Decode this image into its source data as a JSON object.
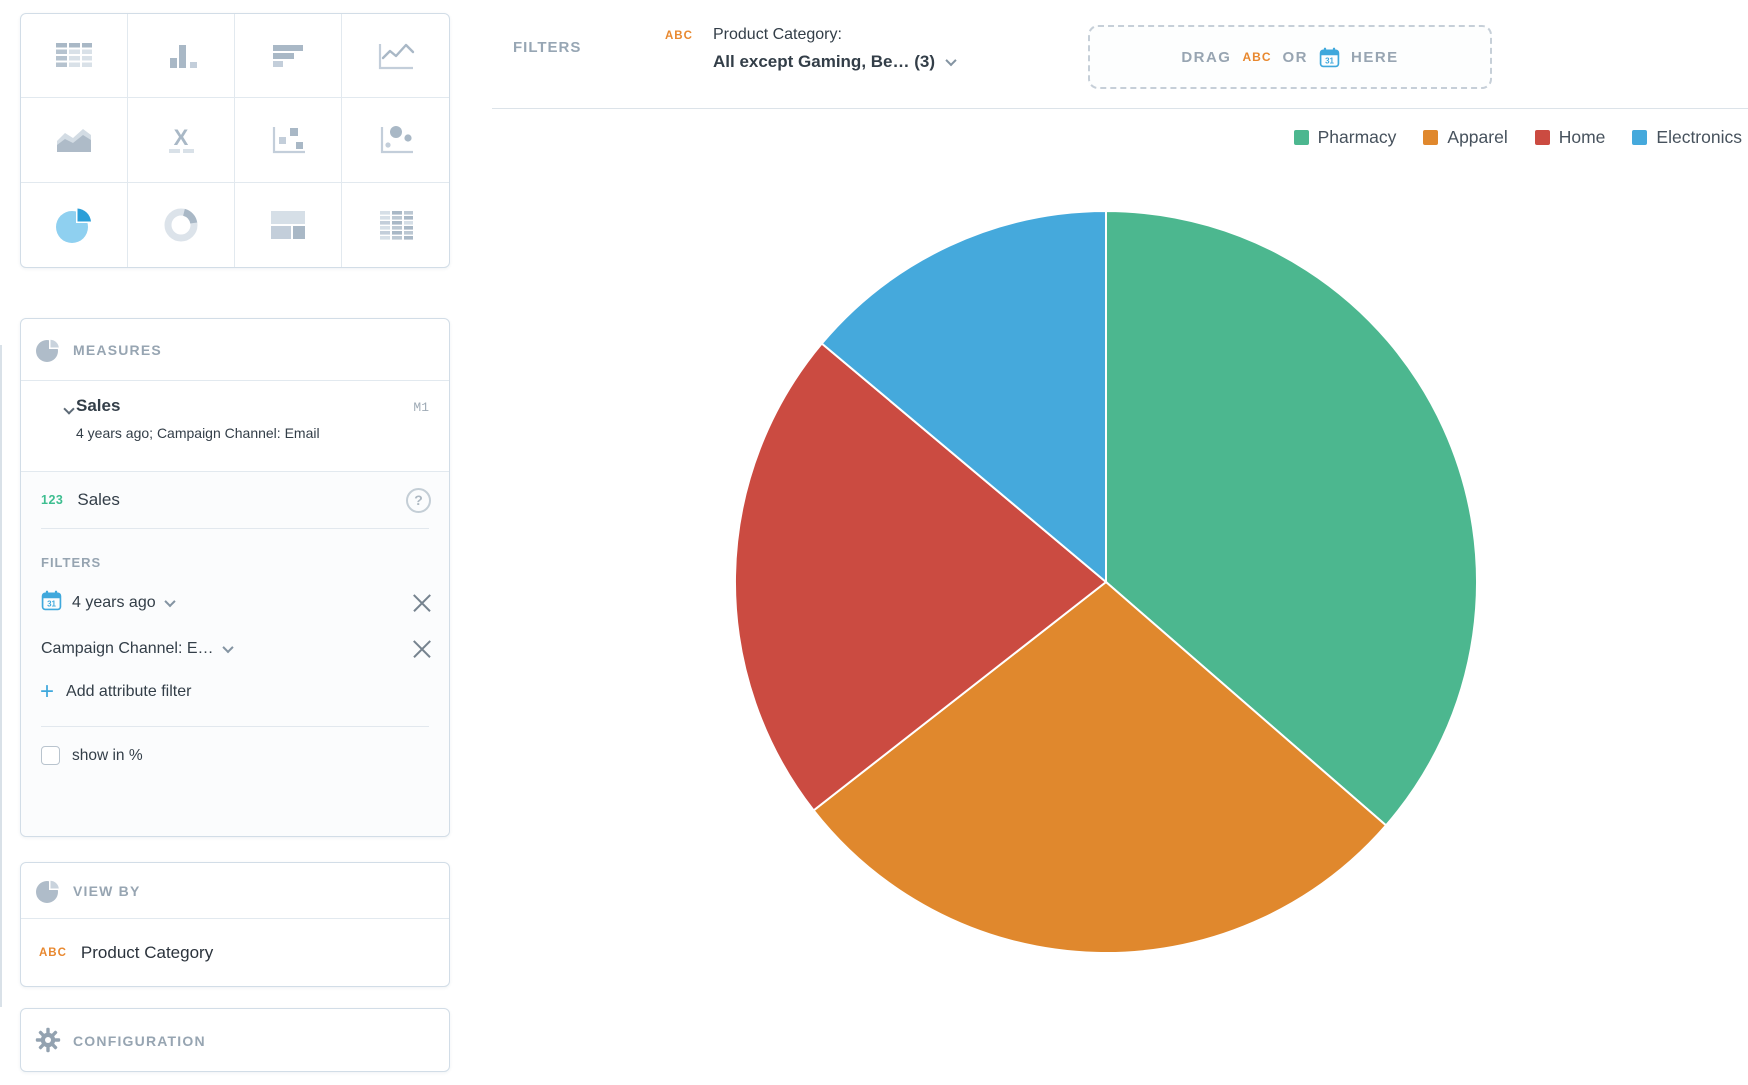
{
  "chart_selector": {
    "types": [
      "table",
      "column-chart",
      "bar-chart",
      "line-chart",
      "area-chart",
      "headline",
      "scatter-plot",
      "bubble-chart",
      "pie-chart",
      "donut-chart",
      "treemap",
      "heatmap"
    ],
    "selected": "pie-chart"
  },
  "measures_panel": {
    "title": "MEASURES",
    "measure": {
      "name": "Sales",
      "tag": "M1",
      "subtitle": "4 years ago; Campaign Channel: Email"
    },
    "metric": {
      "type_badge": "123",
      "name": "Sales",
      "help": "?"
    },
    "filters_label": "FILTERS",
    "filters": [
      {
        "label": "4 years ago",
        "type": "date"
      },
      {
        "label": "Campaign Channel: E…",
        "type": "attribute"
      }
    ],
    "add_attribute_filter_label": "Add attribute filter",
    "show_in_percent": {
      "label": "show in %",
      "checked": false
    }
  },
  "view_by_panel": {
    "title": "VIEW BY",
    "item": {
      "badge": "ABC",
      "label": "Product Category"
    }
  },
  "configuration_panel": {
    "title": "CONFIGURATION"
  },
  "top_bar": {
    "filters_label": "FILTERS",
    "active_filter": {
      "badge": "ABC",
      "line1": "Product Category:",
      "line2": "All except Gaming, Be… (3)"
    },
    "dropzone": {
      "drag": "DRAG",
      "attr_badge": "ABC",
      "or": "OR",
      "here": "HERE"
    }
  },
  "chart_data": {
    "type": "pie",
    "measure": "Sales",
    "view_by": "Product Category",
    "start_angle_deg": 0,
    "clockwise": true,
    "legend_position": "top-right",
    "data_labels": "none",
    "series": [
      {
        "name": "Pharmacy",
        "color": "#4CB78F",
        "angle_deg": 131,
        "value_pct_est": 36.4
      },
      {
        "name": "Apparel",
        "color": "#E0882D",
        "angle_deg": 101,
        "value_pct_est": 28.1
      },
      {
        "name": "Home",
        "color": "#CB4B41",
        "angle_deg": 78,
        "value_pct_est": 21.6
      },
      {
        "name": "Electronics",
        "color": "#45A9DC",
        "angle_deg": 50,
        "value_pct_est": 13.9
      }
    ]
  },
  "colors": {
    "accent_blue": "#3FA8DC",
    "badge_green": "#3EBE90",
    "badge_orange": "#E8882F",
    "header_gray": "#97A5B2",
    "text_dark": "#333E48",
    "panel_border": "#D2DDE7"
  }
}
